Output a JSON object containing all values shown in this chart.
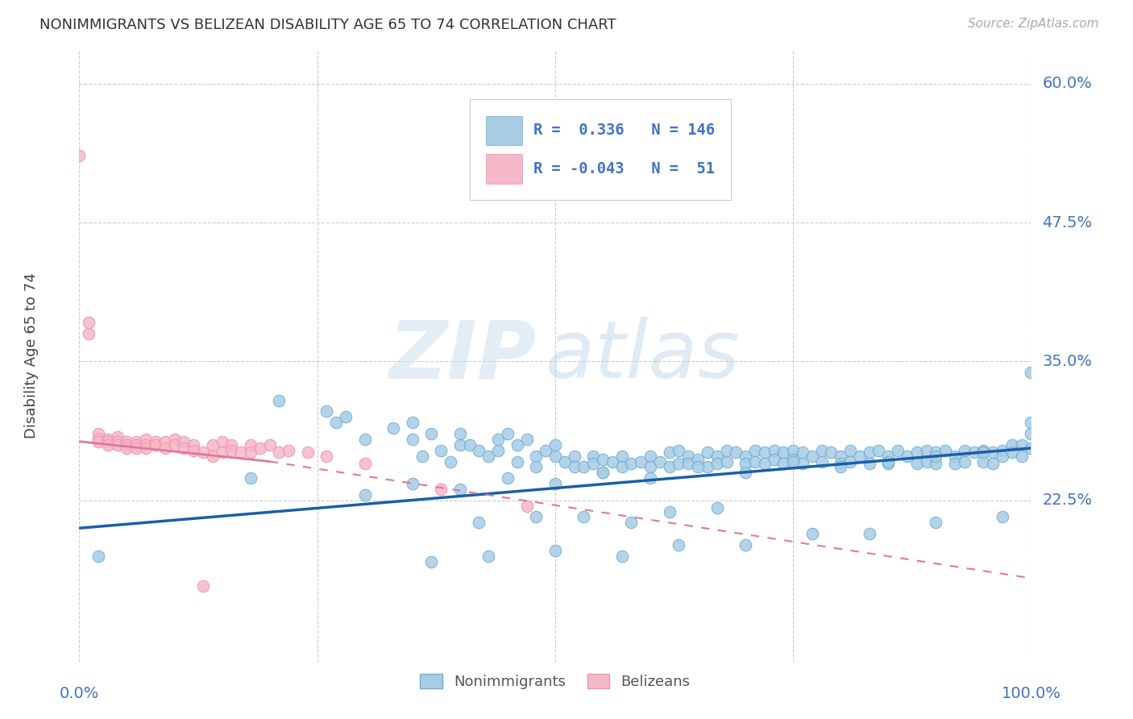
{
  "title": "NONIMMIGRANTS VS BELIZEAN DISABILITY AGE 65 TO 74 CORRELATION CHART",
  "source": "Source: ZipAtlas.com",
  "ylabel": "Disability Age 65 to 74",
  "xlim": [
    0.0,
    1.0
  ],
  "ylim": [
    0.08,
    0.63
  ],
  "xtick_labels": [
    "0.0%",
    "100.0%"
  ],
  "ytick_labels": [
    "22.5%",
    "35.0%",
    "47.5%",
    "60.0%"
  ],
  "ytick_positions": [
    0.225,
    0.35,
    0.475,
    0.6
  ],
  "legend_blue_r": "0.336",
  "legend_blue_n": "146",
  "legend_pink_r": "-0.043",
  "legend_pink_n": "51",
  "blue_color": "#a8cce4",
  "blue_edge_color": "#6baed6",
  "pink_color": "#f4b8c8",
  "pink_edge_color": "#f48fb1",
  "blue_line_color": "#1a5fa8",
  "pink_line_color": "#e07898",
  "bg_color": "#ffffff",
  "grid_color": "#cccccc",
  "text_color": "#4472c4",
  "blue_scatter_x": [
    0.02,
    0.18,
    0.21,
    0.26,
    0.27,
    0.28,
    0.3,
    0.33,
    0.35,
    0.35,
    0.36,
    0.37,
    0.38,
    0.39,
    0.4,
    0.4,
    0.41,
    0.42,
    0.43,
    0.44,
    0.44,
    0.45,
    0.46,
    0.46,
    0.47,
    0.48,
    0.48,
    0.49,
    0.5,
    0.5,
    0.51,
    0.52,
    0.52,
    0.53,
    0.54,
    0.54,
    0.55,
    0.55,
    0.56,
    0.57,
    0.57,
    0.58,
    0.59,
    0.6,
    0.6,
    0.61,
    0.62,
    0.62,
    0.63,
    0.63,
    0.64,
    0.64,
    0.65,
    0.66,
    0.66,
    0.67,
    0.67,
    0.68,
    0.68,
    0.69,
    0.7,
    0.7,
    0.71,
    0.71,
    0.72,
    0.72,
    0.73,
    0.73,
    0.74,
    0.74,
    0.75,
    0.75,
    0.76,
    0.76,
    0.77,
    0.78,
    0.78,
    0.79,
    0.8,
    0.8,
    0.81,
    0.81,
    0.82,
    0.83,
    0.83,
    0.84,
    0.85,
    0.85,
    0.86,
    0.87,
    0.88,
    0.88,
    0.89,
    0.89,
    0.9,
    0.9,
    0.91,
    0.92,
    0.92,
    0.93,
    0.93,
    0.94,
    0.95,
    0.95,
    0.96,
    0.96,
    0.97,
    0.97,
    0.98,
    0.98,
    0.99,
    0.99,
    1.0,
    1.0,
    1.0,
    0.3,
    0.35,
    0.4,
    0.45,
    0.5,
    0.55,
    0.6,
    0.65,
    0.7,
    0.75,
    0.8,
    0.85,
    0.9,
    0.95,
    1.0,
    0.37,
    0.43,
    0.5,
    0.57,
    0.63,
    0.7,
    0.77,
    0.83,
    0.9,
    0.97,
    0.42,
    0.48,
    0.53,
    0.58,
    0.62,
    0.67
  ],
  "blue_scatter_y": [
    0.175,
    0.245,
    0.315,
    0.305,
    0.295,
    0.3,
    0.28,
    0.29,
    0.295,
    0.28,
    0.265,
    0.285,
    0.27,
    0.26,
    0.275,
    0.285,
    0.275,
    0.27,
    0.265,
    0.28,
    0.27,
    0.285,
    0.26,
    0.275,
    0.28,
    0.265,
    0.255,
    0.27,
    0.265,
    0.275,
    0.26,
    0.265,
    0.255,
    0.255,
    0.265,
    0.258,
    0.262,
    0.25,
    0.26,
    0.265,
    0.255,
    0.258,
    0.26,
    0.265,
    0.255,
    0.26,
    0.268,
    0.255,
    0.27,
    0.258,
    0.265,
    0.258,
    0.262,
    0.268,
    0.255,
    0.265,
    0.258,
    0.27,
    0.26,
    0.268,
    0.265,
    0.258,
    0.27,
    0.26,
    0.268,
    0.258,
    0.27,
    0.262,
    0.268,
    0.258,
    0.27,
    0.262,
    0.268,
    0.258,
    0.265,
    0.27,
    0.26,
    0.268,
    0.265,
    0.258,
    0.27,
    0.26,
    0.265,
    0.268,
    0.258,
    0.27,
    0.265,
    0.258,
    0.27,
    0.265,
    0.268,
    0.258,
    0.27,
    0.26,
    0.268,
    0.258,
    0.27,
    0.265,
    0.258,
    0.27,
    0.26,
    0.268,
    0.27,
    0.26,
    0.268,
    0.258,
    0.27,
    0.265,
    0.275,
    0.268,
    0.275,
    0.265,
    0.285,
    0.295,
    0.34,
    0.23,
    0.24,
    0.235,
    0.245,
    0.24,
    0.25,
    0.245,
    0.255,
    0.25,
    0.26,
    0.255,
    0.26,
    0.265,
    0.268,
    0.272,
    0.17,
    0.175,
    0.18,
    0.175,
    0.185,
    0.185,
    0.195,
    0.195,
    0.205,
    0.21,
    0.205,
    0.21,
    0.21,
    0.205,
    0.215,
    0.218
  ],
  "pink_scatter_x": [
    0.0,
    0.01,
    0.01,
    0.02,
    0.02,
    0.02,
    0.03,
    0.03,
    0.03,
    0.04,
    0.04,
    0.04,
    0.05,
    0.05,
    0.05,
    0.06,
    0.06,
    0.06,
    0.07,
    0.07,
    0.07,
    0.08,
    0.08,
    0.09,
    0.09,
    0.1,
    0.1,
    0.11,
    0.11,
    0.12,
    0.12,
    0.13,
    0.13,
    0.14,
    0.14,
    0.15,
    0.15,
    0.16,
    0.16,
    0.17,
    0.18,
    0.18,
    0.19,
    0.2,
    0.21,
    0.22,
    0.24,
    0.26,
    0.3,
    0.38,
    0.47
  ],
  "pink_scatter_y": [
    0.535,
    0.375,
    0.385,
    0.285,
    0.28,
    0.278,
    0.28,
    0.278,
    0.275,
    0.282,
    0.278,
    0.275,
    0.278,
    0.275,
    0.272,
    0.278,
    0.275,
    0.272,
    0.28,
    0.275,
    0.272,
    0.278,
    0.275,
    0.278,
    0.272,
    0.28,
    0.275,
    0.278,
    0.272,
    0.275,
    0.27,
    0.148,
    0.268,
    0.275,
    0.265,
    0.278,
    0.268,
    0.275,
    0.27,
    0.268,
    0.275,
    0.268,
    0.272,
    0.275,
    0.268,
    0.27,
    0.268,
    0.265,
    0.258,
    0.235,
    0.22
  ],
  "blue_line_y_start": 0.2,
  "blue_line_y_end": 0.272,
  "pink_line_x_solid_end": 0.2,
  "pink_line_y_start": 0.278,
  "pink_line_y_at_solid_end": 0.26,
  "pink_line_y_end": 0.155,
  "watermark_zip": "ZIP",
  "watermark_atlas": "atlas"
}
